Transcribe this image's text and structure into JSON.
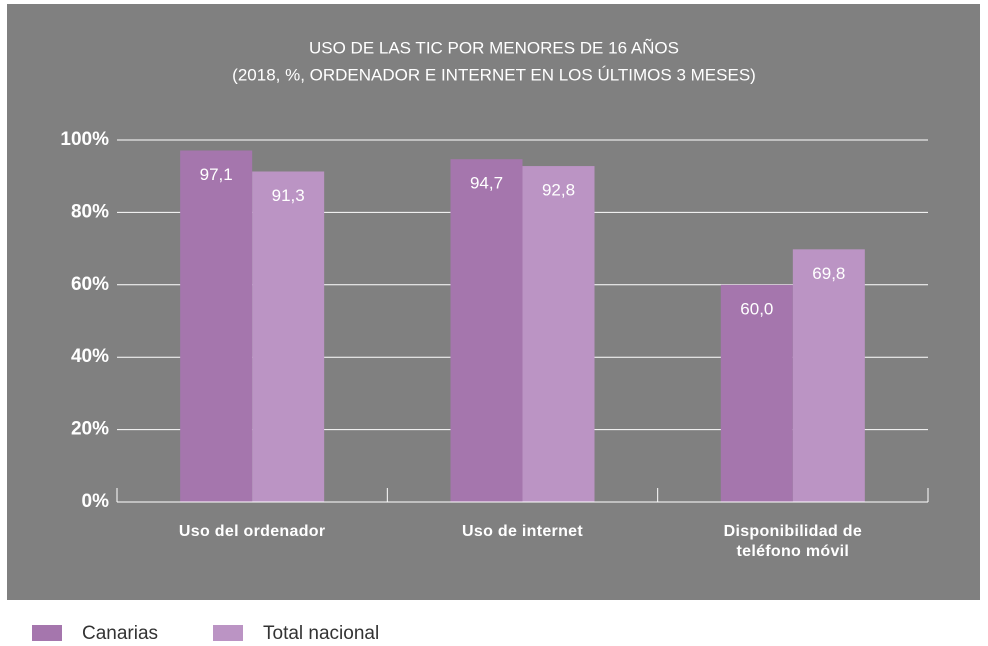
{
  "chart_data": {
    "type": "bar",
    "title": "USO DE LAS TIC POR MENORES DE 16 AÑOS",
    "subtitle": "(2018, %, ORDENADOR E INTERNET EN LOS ÚLTIMOS 3 MESES)",
    "categories": [
      "Uso del ordenador",
      "Uso de internet",
      "Disponibilidad de teléfono móvil"
    ],
    "series": [
      {
        "name": "Canarias",
        "color": "#a576ad",
        "values": [
          97.1,
          94.7,
          60.0
        ],
        "value_labels": [
          "97,1",
          "94,7",
          "60,0"
        ]
      },
      {
        "name": "Total nacional",
        "color": "#bb94c4",
        "values": [
          91.3,
          92.8,
          69.8
        ],
        "value_labels": [
          "91,3",
          "92,8",
          "69,8"
        ]
      }
    ],
    "ylim": [
      0,
      100
    ],
    "yticks": [
      {
        "value": 0,
        "label": "0%"
      },
      {
        "value": 20,
        "label": "20%"
      },
      {
        "value": 40,
        "label": "40%"
      },
      {
        "value": 60,
        "label": "60%"
      },
      {
        "value": 80,
        "label": "80%"
      },
      {
        "value": 100,
        "label": "100%"
      }
    ],
    "grid": true,
    "legend": "bottom-left"
  }
}
